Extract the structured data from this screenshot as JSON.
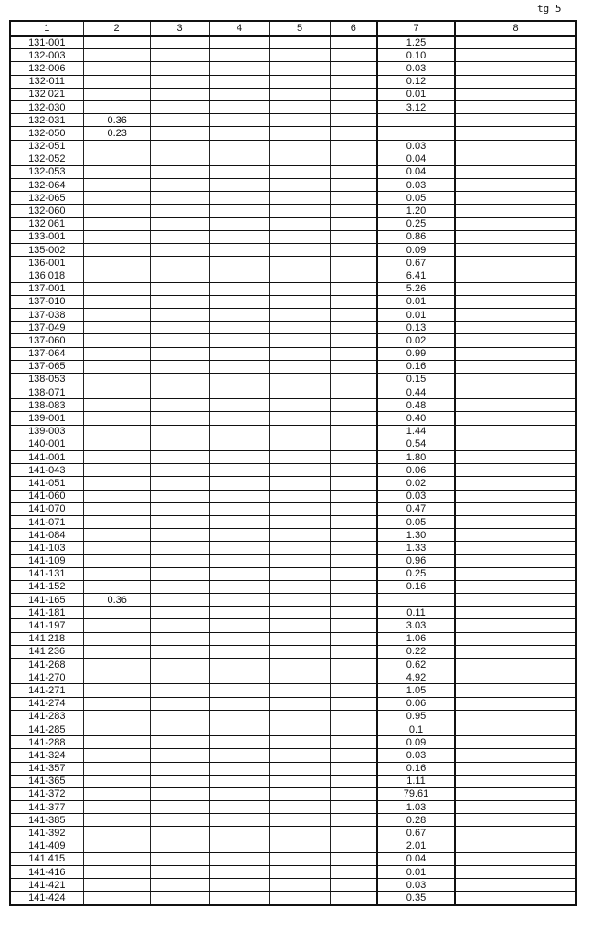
{
  "page_mark": "tg 5",
  "headers": [
    "1",
    "2",
    "3",
    "4",
    "5",
    "6",
    "7",
    "8"
  ],
  "rows": [
    {
      "c1": "131-001",
      "c2": "",
      "c7": "1.25"
    },
    {
      "c1": "132-003",
      "c2": "",
      "c7": "0.10"
    },
    {
      "c1": "132-006",
      "c2": "",
      "c7": "0.03"
    },
    {
      "c1": "132-011",
      "c2": "",
      "c7": "0.12"
    },
    {
      "c1": "132 021",
      "c2": "",
      "c7": "0.01"
    },
    {
      "c1": "132-030",
      "c2": "",
      "c7": "3.12"
    },
    {
      "c1": "132-031",
      "c2": "0.36",
      "c7": ""
    },
    {
      "c1": "132-050",
      "c2": "0.23",
      "c7": ""
    },
    {
      "c1": "132-051",
      "c2": "",
      "c7": "0.03"
    },
    {
      "c1": "132-052",
      "c2": "",
      "c7": "0.04"
    },
    {
      "c1": "132-053",
      "c2": "",
      "c7": "0.04"
    },
    {
      "c1": "132-064",
      "c2": "",
      "c7": "0.03"
    },
    {
      "c1": "132-065",
      "c2": "",
      "c7": "0.05"
    },
    {
      "c1": "132-060",
      "c2": "",
      "c7": "1.20"
    },
    {
      "c1": "132 061",
      "c2": "",
      "c7": "0.25"
    },
    {
      "c1": "133-001",
      "c2": "",
      "c7": "0.86"
    },
    {
      "c1": "135-002",
      "c2": "",
      "c7": "0.09"
    },
    {
      "c1": "136-001",
      "c2": "",
      "c7": "0.67"
    },
    {
      "c1": "136 018",
      "c2": "",
      "c7": "6.41"
    },
    {
      "c1": "137-001",
      "c2": "",
      "c7": "5.26"
    },
    {
      "c1": "137-010",
      "c2": "",
      "c7": "0.01"
    },
    {
      "c1": "137-038",
      "c2": "",
      "c7": "0.01"
    },
    {
      "c1": "137-049",
      "c2": "",
      "c7": "0.13"
    },
    {
      "c1": "137-060",
      "c2": "",
      "c7": "0.02"
    },
    {
      "c1": "137-064",
      "c2": "",
      "c7": "0.99"
    },
    {
      "c1": "137-065",
      "c2": "",
      "c7": "0.16"
    },
    {
      "c1": "138-053",
      "c2": "",
      "c7": "0.15"
    },
    {
      "c1": "138-071",
      "c2": "",
      "c7": "0.44"
    },
    {
      "c1": "138-083",
      "c2": "",
      "c7": "0.48"
    },
    {
      "c1": "139-001",
      "c2": "",
      "c7": "0.40"
    },
    {
      "c1": "139-003",
      "c2": "",
      "c7": "1.44"
    },
    {
      "c1": "140-001",
      "c2": "",
      "c7": "0.54"
    },
    {
      "c1": "141-001",
      "c2": "",
      "c7": "1.80"
    },
    {
      "c1": "141-043",
      "c2": "",
      "c7": "0.06"
    },
    {
      "c1": "141-051",
      "c2": "",
      "c7": "0.02"
    },
    {
      "c1": "141-060",
      "c2": "",
      "c7": "0.03"
    },
    {
      "c1": "141-070",
      "c2": "",
      "c7": "0.47"
    },
    {
      "c1": "141-071",
      "c2": "",
      "c7": "0.05"
    },
    {
      "c1": "141-084",
      "c2": "",
      "c7": "1.30"
    },
    {
      "c1": "141-103",
      "c2": "",
      "c7": "1.33"
    },
    {
      "c1": "141-109",
      "c2": "",
      "c7": "0.96"
    },
    {
      "c1": "141-131",
      "c2": "",
      "c7": "0.25"
    },
    {
      "c1": "141-152",
      "c2": "",
      "c7": "0.16"
    },
    {
      "c1": "141-165",
      "c2": "0.36",
      "c7": ""
    },
    {
      "c1": "141-181",
      "c2": "",
      "c7": "0.11"
    },
    {
      "c1": "141-197",
      "c2": "",
      "c7": "3.03"
    },
    {
      "c1": "141 218",
      "c2": "",
      "c7": "1.06"
    },
    {
      "c1": "141 236",
      "c2": "",
      "c7": "0.22"
    },
    {
      "c1": "141-268",
      "c2": "",
      "c7": "0.62"
    },
    {
      "c1": "141-270",
      "c2": "",
      "c7": "4.92"
    },
    {
      "c1": "141-271",
      "c2": "",
      "c7": "1.05"
    },
    {
      "c1": "141-274",
      "c2": "",
      "c7": "0.06"
    },
    {
      "c1": "141-283",
      "c2": "",
      "c7": "0.95"
    },
    {
      "c1": "141-285",
      "c2": "",
      "c7": "0.1"
    },
    {
      "c1": "141-288",
      "c2": "",
      "c7": "0.09"
    },
    {
      "c1": "141-324",
      "c2": "",
      "c7": "0.03"
    },
    {
      "c1": "141-357",
      "c2": "",
      "c7": "0.16"
    },
    {
      "c1": "141-365",
      "c2": "",
      "c7": "1.11"
    },
    {
      "c1": "141-372",
      "c2": "",
      "c7": "79.61"
    },
    {
      "c1": "141-377",
      "c2": "",
      "c7": "1.03"
    },
    {
      "c1": "141-385",
      "c2": "",
      "c7": "0.28"
    },
    {
      "c1": "141-392",
      "c2": "",
      "c7": "0.67"
    },
    {
      "c1": "141-409",
      "c2": "",
      "c7": "2.01"
    },
    {
      "c1": "141 415",
      "c2": "",
      "c7": "0.04"
    },
    {
      "c1": "141-416",
      "c2": "",
      "c7": "0.01"
    },
    {
      "c1": "141-421",
      "c2": "",
      "c7": "0.03"
    },
    {
      "c1": "141-424",
      "c2": "",
      "c7": "0.35"
    }
  ]
}
